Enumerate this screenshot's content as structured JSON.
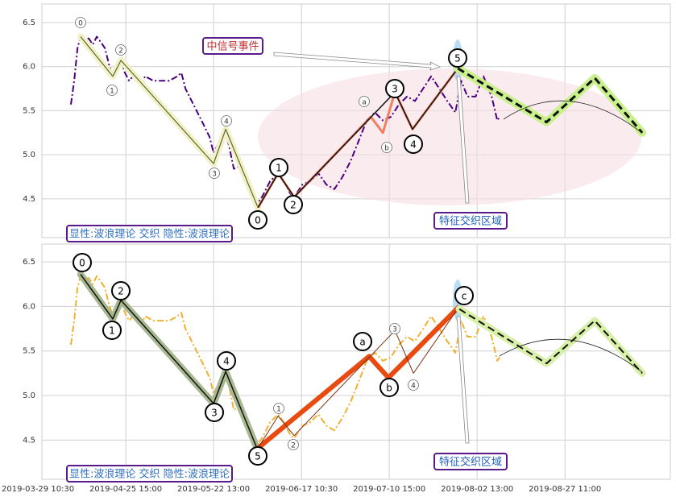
{
  "chart_data": [
    {
      "type": "line",
      "xlim": [
        1.8,
        288
      ],
      "ylim": [
        4.06,
        6.71
      ],
      "yticks": [
        4.5,
        {
          "value": 5,
          "label": "5.0"
        },
        5.5,
        {
          "value": 6,
          "label": "6.0"
        },
        6.5
      ],
      "grid": true,
      "series": [
        {
          "color": "#4b0082",
          "dash": "dashdot",
          "width": 2,
          "x": [
            15.0,
            16.5,
            18.0,
            19.4,
            21.3,
            23.1,
            25.0,
            26.8,
            28.6,
            30.5,
            32.3,
            34.1,
            36.0,
            37.8,
            39.6,
            41.5,
            43.3,
            45.1,
            47.0,
            48.8,
            52.5,
            56.1,
            59.8,
            63.5,
            65.3,
            67.2,
            70.8,
            74.5,
            78.2,
            80.0,
            81.8,
            83.7,
            85.5,
            87.3,
            89.2,
            92.8,
            94.7,
            97.2,
            99.4,
            102.0,
            105.7,
            109.4,
            111.9,
            114.9,
            116.7,
            120.4,
            124.0,
            127.7,
            131.4,
            135.0,
            138.7,
            142.4,
            146.1,
            149.7,
            153.4,
            157.1,
            160.7,
            164.4,
            168.1,
            171.7,
            175.4,
            179.1,
            182.8,
            186.4,
            190.1,
            192.7,
            195.6,
            199.3,
            202.9,
            206.6,
            209.2,
            210.3
          ],
          "values": [
            5.57,
            5.84,
            6.21,
            6.34,
            6.3,
            6.32,
            6.25,
            6.34,
            6.28,
            6.21,
            6.03,
            5.89,
            5.98,
            6.07,
            5.93,
            5.84,
            5.89,
            5.86,
            5.8,
            5.89,
            5.84,
            5.84,
            5.84,
            5.89,
            5.93,
            5.75,
            5.57,
            5.39,
            5.2,
            5.02,
            5.11,
            5.2,
            5.25,
            5.07,
            4.84,
            4.88,
            4.79,
            4.56,
            4.43,
            4.52,
            4.7,
            4.79,
            4.7,
            4.56,
            4.52,
            4.66,
            4.7,
            4.79,
            4.66,
            4.61,
            4.75,
            4.93,
            5.16,
            5.39,
            5.48,
            5.39,
            5.43,
            5.57,
            5.66,
            5.61,
            5.75,
            5.89,
            5.75,
            5.61,
            5.48,
            5.84,
            5.66,
            5.66,
            5.89,
            5.66,
            5.39,
            5.43
          ]
        },
        {
          "color": "#556b2f",
          "width": 1.2,
          "halo": "#f4f0c8",
          "x": [
            19.4,
            34.1,
            37.8,
            80.0,
            85.5,
            100.2
          ],
          "values": [
            6.34,
            5.89,
            6.07,
            4.9,
            5.29,
            4.4
          ]
        },
        {
          "color": "#f08060",
          "width": 3,
          "x": [
            100.2,
            109.4,
            116.7,
            151.6,
            157.1,
            162.6,
            170.6,
            191.2
          ],
          "values": [
            4.4,
            4.79,
            4.52,
            5.43,
            5.25,
            5.71,
            5.29,
            5.98
          ]
        },
        {
          "color": "#111111",
          "width": 1.5,
          "x": [
            100.2,
            109.4,
            116.7,
            162.6,
            170.6,
            191.2
          ],
          "values": [
            4.4,
            4.79,
            4.52,
            5.71,
            5.29,
            5.98
          ]
        },
        {
          "color": "#111111",
          "dash": "dashed",
          "width": 3,
          "halo": "#c8f08c",
          "x": [
            191.2,
            231.6,
            253.6,
            275.2
          ],
          "values": [
            5.98,
            5.37,
            5.87,
            5.25
          ]
        }
      ],
      "labels": [
        "0",
        "2",
        "1",
        "3",
        "4",
        "a",
        "b",
        "1",
        "2",
        "3",
        "4",
        "0",
        "5"
      ],
      "annotations": [
        "中信号事件",
        "特征交织区域",
        "显性:波浪理论 交织 隐性:波浪理论"
      ]
    },
    {
      "type": "line",
      "xlim": [
        1.8,
        288
      ],
      "ylim": [
        4.06,
        6.7
      ],
      "yticks": [
        4.5,
        {
          "value": 5,
          "label": "5.0"
        },
        5.5,
        {
          "value": 6,
          "label": "6.0"
        },
        6.5
      ],
      "grid": true,
      "xticks": [
        {
          "value": 0,
          "label": "2019-03-29 10:30"
        },
        {
          "value": 40,
          "label": "2019-04-25 15:00"
        },
        {
          "value": 80,
          "label": "2019-05-22 13:00"
        },
        {
          "value": 120,
          "label": "2019-06-17 10:30"
        },
        {
          "value": 160,
          "label": "2019-07-10 15:00"
        },
        {
          "value": 200,
          "label": "2019-08-02 13:00"
        },
        {
          "value": 240,
          "label": "2019-08-27 11:00"
        }
      ],
      "series": [
        {
          "color": "#f0b030",
          "dash": "dashdot",
          "width": 2,
          "x": [
            15.0,
            16.5,
            18.0,
            19.4,
            21.3,
            23.1,
            25.0,
            26.8,
            28.6,
            30.5,
            32.3,
            34.1,
            36.0,
            37.8,
            39.6,
            41.5,
            43.3,
            45.1,
            47.0,
            48.8,
            52.5,
            56.1,
            59.8,
            63.5,
            65.3,
            67.2,
            70.8,
            74.5,
            78.2,
            80.0,
            81.8,
            83.7,
            85.5,
            87.3,
            89.2,
            92.8,
            94.7,
            97.2,
            99.4,
            102.0,
            105.7,
            109.4,
            111.9,
            114.9,
            116.7,
            120.4,
            124.0,
            127.7,
            131.4,
            135.0,
            138.7,
            142.4,
            146.1,
            149.7,
            153.4,
            157.1,
            160.7,
            164.4,
            168.1,
            171.7,
            175.4,
            179.1,
            182.8,
            186.4,
            190.1,
            192.7,
            195.6,
            199.3,
            202.9,
            206.6,
            209.2,
            210.3
          ],
          "values": [
            5.57,
            5.84,
            6.21,
            6.34,
            6.3,
            6.32,
            6.25,
            6.34,
            6.28,
            6.21,
            6.03,
            5.89,
            5.98,
            6.07,
            5.93,
            5.84,
            5.89,
            5.86,
            5.8,
            5.89,
            5.84,
            5.84,
            5.84,
            5.89,
            5.93,
            5.75,
            5.57,
            5.39,
            5.2,
            5.02,
            5.11,
            5.2,
            5.25,
            5.07,
            4.84,
            4.88,
            4.79,
            4.56,
            4.43,
            4.52,
            4.7,
            4.79,
            4.7,
            4.56,
            4.52,
            4.66,
            4.7,
            4.79,
            4.66,
            4.61,
            4.75,
            4.93,
            5.16,
            5.39,
            5.48,
            5.39,
            5.43,
            5.57,
            5.66,
            5.61,
            5.75,
            5.89,
            5.75,
            5.61,
            5.48,
            5.84,
            5.66,
            5.66,
            5.89,
            5.66,
            5.39,
            5.43
          ]
        },
        {
          "color": "#111111",
          "width": 1.5,
          "halo": "#a8b890",
          "x": [
            19.4,
            34.1,
            37.8,
            80.0,
            85.5,
            100.2
          ],
          "values": [
            6.36,
            5.86,
            6.07,
            4.91,
            5.27,
            4.38
          ]
        },
        {
          "color": "#e84a10",
          "width": 6,
          "x": [
            100.2,
            150.8,
            159.6,
            191.9
          ],
          "values": [
            4.41,
            5.44,
            5.2,
            6.0
          ]
        },
        {
          "color": "#7a3010",
          "width": 1,
          "x": [
            100.2,
            109.4,
            116.7,
            162.6,
            171.0,
            191.9
          ],
          "values": [
            4.41,
            4.77,
            4.55,
            5.73,
            5.25,
            6.0
          ]
        },
        {
          "color": "#111111",
          "dash": "dashed",
          "width": 2,
          "halo": "#d8f0a8",
          "x": [
            191.9,
            231.6,
            253.6,
            275.2
          ],
          "values": [
            5.97,
            5.36,
            5.84,
            5.25
          ]
        }
      ],
      "labels": [
        "0",
        "2",
        "1",
        "4",
        "3",
        "a",
        "b",
        "5",
        "c",
        "1",
        "2",
        "3",
        "4"
      ],
      "annotations": [
        "特征交织区域",
        "显性:波浪理论 交织 隐性:波浪理论"
      ]
    }
  ]
}
